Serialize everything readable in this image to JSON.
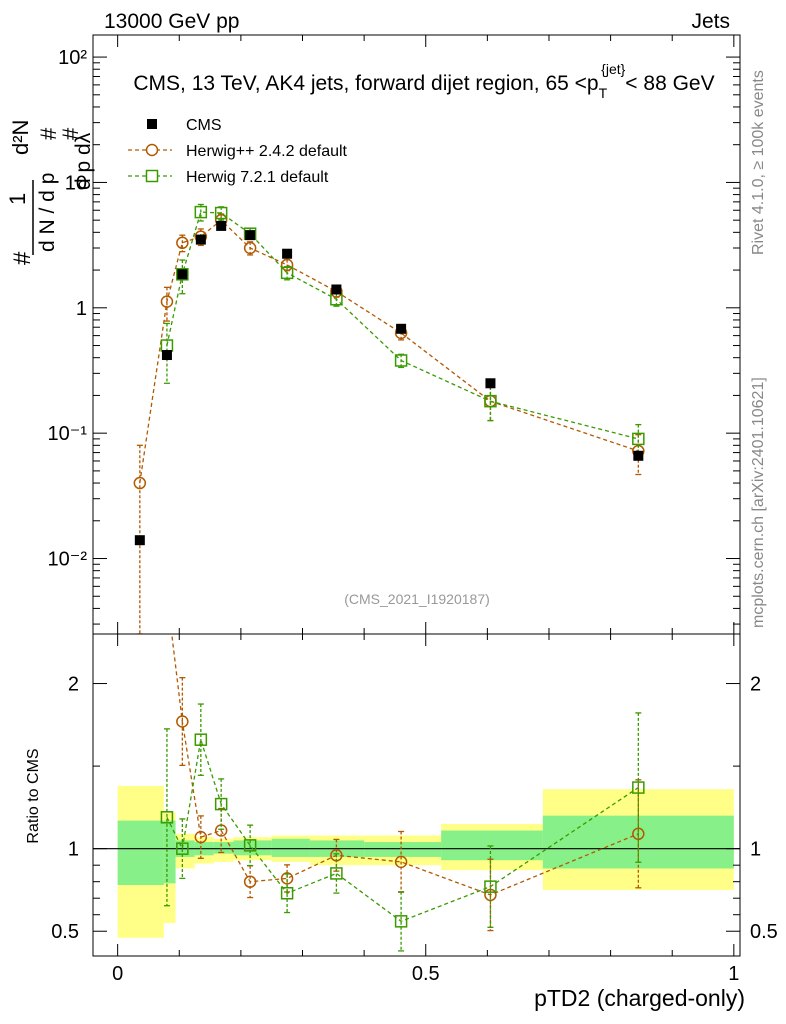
{
  "header": {
    "left": "13000 GeV pp",
    "right": "Jets"
  },
  "side_labels": {
    "top": "Rivet 4.1.0, ≥ 100k events",
    "bottom": "mcplots.cern.ch [arXiv:2401.10621]"
  },
  "chart_data": {
    "type": "scatter",
    "title": "CMS, 13 TeV, AK4 jets, forward dijet region, 65 <pᵀ{jet}< 88 GeV",
    "title_parts": {
      "pre": "CMS, 13 TeV, AK4 jets, forward dijet region, 65 <p",
      "sub": "T",
      "sup": "{jet}",
      "post": "< 88 GeV"
    },
    "watermark": "(CMS_2021_I1920187)",
    "xlabel": "pTD2 (charged-only)",
    "ylabel_main": "1/N dN/dpTD2",
    "ylabel_ratio": "Ratio to CMS",
    "xlim": [
      -0.04,
      1.01
    ],
    "ylim_main": [
      0.0025,
      150
    ],
    "ylim_ratio": [
      0.35,
      2.3
    ],
    "yscale_main": "log",
    "x_ticks": [
      "0",
      "0.5",
      "1"
    ],
    "y_ticks_main": [
      "10⁻²",
      "10⁻¹",
      "1",
      "10",
      "10²"
    ],
    "y_ticks_ratio": [
      "0.5",
      "1",
      "2"
    ],
    "legend": [
      "CMS",
      "Herwig++ 2.4.2 default",
      "Herwig 7.2.1 default"
    ],
    "bins": [
      0,
      0.075,
      0.094,
      0.125,
      0.156,
      0.188,
      0.25,
      0.312,
      0.4,
      0.525,
      0.69,
      1.0
    ],
    "series": [
      {
        "name": "CMS",
        "color": "#000000",
        "x": [
          0.036,
          0.08,
          0.105,
          0.135,
          0.168,
          0.215,
          0.275,
          0.355,
          0.46,
          0.605,
          0.845
        ],
        "y": [
          0.014,
          0.42,
          1.85,
          3.5,
          4.5,
          3.8,
          2.7,
          1.4,
          0.68,
          0.25,
          0.066
        ],
        "band_inner": [
          [
            0.78,
            1.17
          ],
          [
            0.79,
            1.17
          ],
          [
            0.95,
            1.05
          ],
          [
            0.96,
            1.04
          ],
          [
            0.97,
            1.04
          ],
          [
            0.96,
            1.05
          ],
          [
            0.95,
            1.06
          ],
          [
            0.95,
            1.05
          ],
          [
            0.95,
            1.04
          ],
          [
            0.93,
            1.11
          ],
          [
            0.88,
            1.2
          ]
        ],
        "band_outer": [
          [
            0.46,
            1.38
          ],
          [
            0.55,
            1.22
          ],
          [
            0.88,
            1.09
          ],
          [
            0.91,
            1.07
          ],
          [
            0.92,
            1.06
          ],
          [
            0.93,
            1.07
          ],
          [
            0.92,
            1.08
          ],
          [
            0.9,
            1.08
          ],
          [
            0.9,
            1.08
          ],
          [
            0.87,
            1.15
          ],
          [
            0.75,
            1.36
          ]
        ]
      },
      {
        "name": "Herwig++ 2.4.2 default",
        "color": "#b35900",
        "x": [
          0.036,
          0.08,
          0.105,
          0.135,
          0.168,
          0.215,
          0.275,
          0.355,
          0.46,
          0.605,
          0.845
        ],
        "y": [
          0.04,
          1.12,
          3.3,
          3.7,
          5.0,
          3.0,
          2.2,
          1.35,
          0.63,
          0.18,
          0.072
        ],
        "ratio": [
          2.86,
          2.67,
          1.77,
          1.07,
          1.11,
          0.8,
          0.82,
          0.96,
          0.92,
          0.72,
          1.09
        ]
      },
      {
        "name": "Herwig 7.2.1 default",
        "color": "#3a9a00",
        "x": [
          0.08,
          0.105,
          0.135,
          0.168,
          0.215,
          0.275,
          0.355,
          0.46,
          0.605,
          0.845
        ],
        "y": [
          0.5,
          1.85,
          5.8,
          5.7,
          3.9,
          1.9,
          1.17,
          0.38,
          0.18,
          0.09
        ],
        "ratio": [
          1.19,
          1.0,
          1.66,
          1.27,
          1.02,
          0.73,
          0.85,
          0.56,
          0.77,
          1.37
        ]
      }
    ]
  }
}
